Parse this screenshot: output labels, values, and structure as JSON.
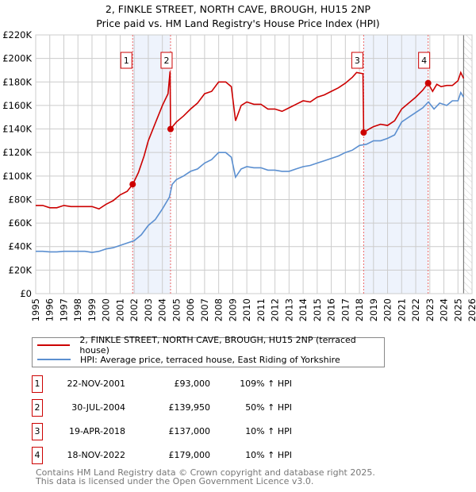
{
  "title": "2, FINKLE STREET, NORTH CAVE, BROUGH, HU15 2NP",
  "subtitle": "Price paid vs. HM Land Registry's House Price Index (HPI)",
  "chart_data": {
    "type": "line",
    "title": "2, FINKLE STREET, NORTH CAVE, BROUGH, HU15 2NP",
    "subtitle": "Price paid vs. HM Land Registry's House Price Index (HPI)",
    "xlim": [
      1995,
      2026
    ],
    "ylim": [
      0,
      220000
    ],
    "xticks": [
      "1995",
      "1996",
      "1997",
      "1998",
      "1999",
      "2000",
      "2001",
      "2002",
      "2003",
      "2004",
      "2005",
      "2006",
      "2007",
      "2008",
      "2009",
      "2010",
      "2011",
      "2012",
      "2013",
      "2014",
      "2015",
      "2016",
      "2017",
      "2018",
      "2019",
      "2020",
      "2021",
      "2022",
      "2023",
      "2024",
      "2025",
      "2026"
    ],
    "yticks": [
      0,
      20000,
      40000,
      60000,
      80000,
      100000,
      120000,
      140000,
      160000,
      180000,
      200000,
      220000
    ],
    "ytick_labels": [
      "£0",
      "£20K",
      "£40K",
      "£60K",
      "£80K",
      "£100K",
      "£120K",
      "£140K",
      "£160K",
      "£180K",
      "£200K",
      "£220K"
    ],
    "grid": true,
    "series": [
      {
        "name": "2, FINKLE STREET, NORTH CAVE, BROUGH, HU15 2NP (terraced house)",
        "color": "#cc0000",
        "x": [
          1995,
          1995.5,
          1996,
          1996.5,
          1997,
          1997.5,
          1998,
          1998.5,
          1999,
          1999.5,
          2000,
          2000.5,
          2001,
          2001.5,
          2001.9,
          2002.3,
          2002.7,
          2003,
          2003.5,
          2004,
          2004.4,
          2004.55,
          2004.58,
          2005,
          2005.5,
          2006,
          2006.5,
          2007,
          2007.5,
          2008,
          2008.5,
          2008.9,
          2009.2,
          2009.6,
          2010,
          2010.5,
          2011,
          2011.5,
          2012,
          2012.5,
          2013,
          2013.5,
          2014,
          2014.5,
          2015,
          2015.5,
          2016,
          2016.5,
          2017,
          2017.5,
          2017.8,
          2018.25,
          2018.3,
          2018.7,
          2019,
          2019.5,
          2020,
          2020.5,
          2021,
          2021.5,
          2022,
          2022.5,
          2022.88,
          2023.2,
          2023.5,
          2023.8,
          2024.2,
          2024.6,
          2025,
          2025.2,
          2025.4
        ],
        "y": [
          75000,
          75000,
          73000,
          73000,
          75000,
          74000,
          74000,
          74000,
          74000,
          72000,
          76000,
          79000,
          84000,
          87000,
          93000,
          103000,
          117000,
          130000,
          145000,
          160000,
          170000,
          189000,
          140000,
          146000,
          151000,
          157000,
          162000,
          170000,
          172000,
          180000,
          180000,
          176000,
          147000,
          160000,
          163000,
          161000,
          161000,
          157000,
          157000,
          155000,
          158000,
          161000,
          164000,
          163000,
          167000,
          169000,
          172000,
          175000,
          179000,
          184000,
          188000,
          187000,
          137000,
          140000,
          142000,
          144000,
          143000,
          147000,
          157000,
          162000,
          167000,
          173000,
          179000,
          172000,
          178000,
          176000,
          177000,
          177000,
          181000,
          188000,
          183000
        ]
      },
      {
        "name": "HPI: Average price, terraced house, East Riding of Yorkshire",
        "color": "#5b8fd0",
        "x": [
          1995,
          1995.5,
          1996,
          1996.5,
          1997,
          1997.5,
          1998,
          1998.5,
          1999,
          1999.5,
          2000,
          2000.5,
          2001,
          2001.5,
          2002,
          2002.5,
          2003,
          2003.5,
          2004,
          2004.5,
          2004.7,
          2005,
          2005.5,
          2006,
          2006.5,
          2007,
          2007.5,
          2008,
          2008.5,
          2008.9,
          2009.2,
          2009.6,
          2010,
          2010.5,
          2011,
          2011.5,
          2012,
          2012.5,
          2013,
          2013.5,
          2014,
          2014.5,
          2015,
          2015.5,
          2016,
          2016.5,
          2017,
          2017.5,
          2018,
          2018.5,
          2019,
          2019.5,
          2020,
          2020.5,
          2021,
          2021.5,
          2022,
          2022.5,
          2022.9,
          2023.3,
          2023.7,
          2024.2,
          2024.6,
          2025,
          2025.2,
          2025.4
        ],
        "y": [
          36000,
          36000,
          35500,
          35500,
          36000,
          36000,
          36000,
          36000,
          35000,
          36000,
          38000,
          39000,
          41000,
          43000,
          45000,
          50000,
          58000,
          63000,
          72000,
          82000,
          93000,
          97000,
          100000,
          104000,
          106000,
          111000,
          114000,
          120000,
          120000,
          116000,
          99000,
          106000,
          108000,
          107000,
          107000,
          105000,
          105000,
          104000,
          104000,
          106000,
          108000,
          109000,
          111000,
          113000,
          115000,
          117000,
          120000,
          122000,
          126000,
          127000,
          130000,
          130000,
          132000,
          135000,
          146000,
          150000,
          154000,
          158000,
          163000,
          157000,
          162000,
          160000,
          164000,
          164000,
          171000,
          167000
        ]
      }
    ],
    "annotations": [
      {
        "label": "1",
        "x": 2001.89,
        "y": 93000
      },
      {
        "label": "2",
        "x": 2004.58,
        "y": 139950
      },
      {
        "label": "3",
        "x": 2018.3,
        "y": 137000
      },
      {
        "label": "4",
        "x": 2022.88,
        "y": 179000
      }
    ],
    "shaded_ranges": [
      [
        2001.89,
        2004.58
      ],
      [
        2018.3,
        2022.88
      ]
    ],
    "hatched_from": 2025.4,
    "legend_placement": "below"
  },
  "legend": [
    {
      "label": "2, FINKLE STREET, NORTH CAVE, BROUGH, HU15 2NP (terraced house)",
      "color": "#cc0000"
    },
    {
      "label": "HPI: Average price, terraced house, East Riding of Yorkshire",
      "color": "#5b8fd0"
    }
  ],
  "sales": [
    {
      "num": "1",
      "date": "22-NOV-2001",
      "price": "£93,000",
      "hpi": "109% ↑ HPI"
    },
    {
      "num": "2",
      "date": "30-JUL-2004",
      "price": "£139,950",
      "hpi": "50% ↑ HPI"
    },
    {
      "num": "3",
      "date": "19-APR-2018",
      "price": "£137,000",
      "hpi": "10% ↑ HPI"
    },
    {
      "num": "4",
      "date": "18-NOV-2022",
      "price": "£179,000",
      "hpi": "10% ↑ HPI"
    }
  ],
  "footer": [
    "Contains HM Land Registry data © Crown copyright and database right 2025.",
    "This data is licensed under the Open Government Licence v3.0."
  ]
}
